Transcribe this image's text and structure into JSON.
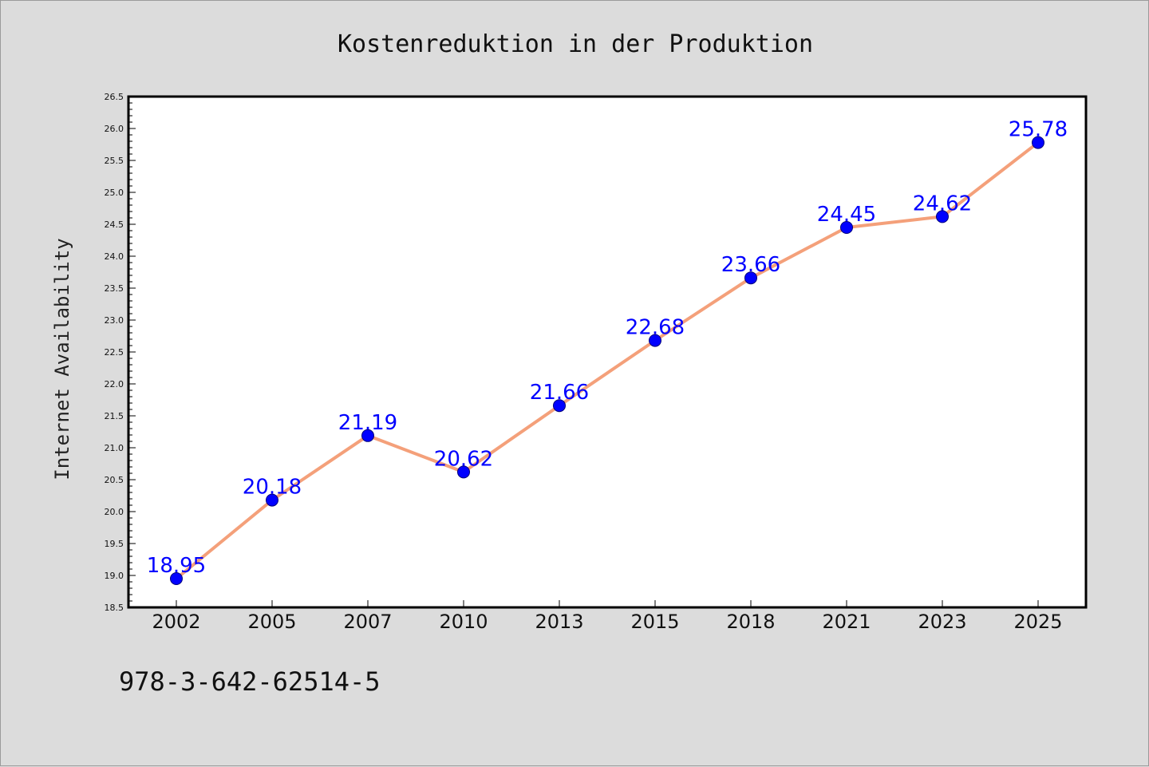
{
  "chart_data": {
    "type": "line",
    "title": "Kostenreduktion in der Produktion",
    "ylabel": "Internet Availability",
    "xlabel": "",
    "categories": [
      "2002",
      "2005",
      "2007",
      "2010",
      "2013",
      "2015",
      "2018",
      "2021",
      "2023",
      "2025"
    ],
    "series": [
      {
        "values": [
          18.95,
          20.18,
          21.19,
          20.62,
          21.66,
          22.68,
          23.66,
          24.45,
          24.62,
          25.78
        ],
        "line_color": "#f4a07a",
        "marker_color": "#0000ff",
        "label_color": "#0000ff"
      }
    ],
    "ylim": [
      18.5,
      26.5
    ],
    "yticks": [
      "18.5",
      "19.0",
      "19.5",
      "20.0",
      "20.5",
      "21.0",
      "21.5",
      "22.0",
      "22.5",
      "23.0",
      "23.5",
      "24.0",
      "24.5",
      "25.0",
      "25.5",
      "26.0",
      "26.5"
    ],
    "grid": false,
    "legend": "none",
    "data_labels": [
      "18.95",
      "20.18",
      "21.19",
      "20.62",
      "21.66",
      "22.68",
      "23.66",
      "24.45",
      "24.62",
      "25.78"
    ]
  },
  "footer": {
    "isbn": "978-3-642-62514-5"
  },
  "colors": {
    "background": "#dcdcdc",
    "plot_background": "#ffffff"
  }
}
